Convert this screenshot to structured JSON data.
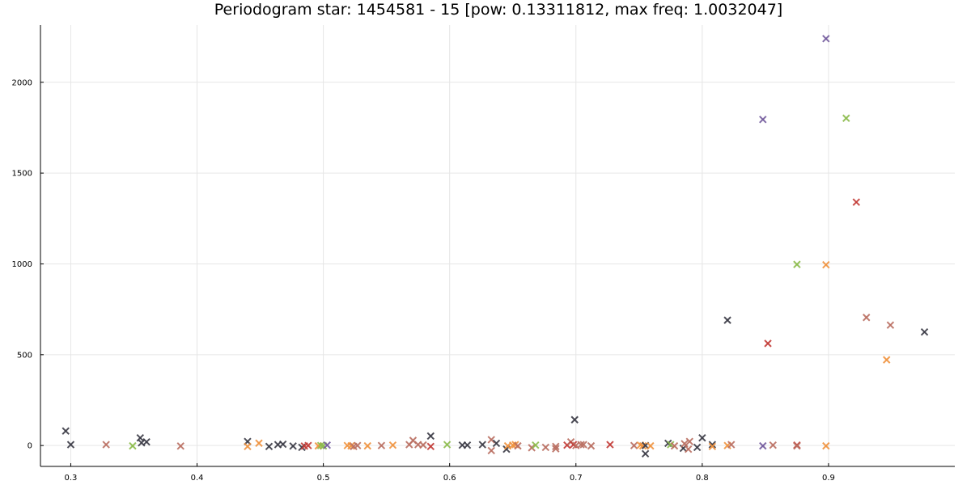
{
  "chart_data": {
    "type": "scatter",
    "title": "Periodogram star: 1454581 - 15 [pow: 0.13311812, max freq: 1.0032047]",
    "xlabel": "",
    "ylabel": "",
    "xlim": [
      0.276,
      1.0
    ],
    "ylim": [
      -115,
      2315
    ],
    "xticks": [
      0.3,
      0.4,
      0.5,
      0.6,
      0.7,
      0.8,
      0.9
    ],
    "xtick_labels": [
      "0.3",
      "0.4",
      "0.5",
      "0.6",
      "0.7",
      "0.8",
      "0.9"
    ],
    "yticks": [
      0,
      500,
      1000,
      1500,
      2000
    ],
    "ytick_labels": [
      "0",
      "500",
      "1000",
      "1500",
      "2000"
    ],
    "grid": true,
    "legend": "none",
    "marker": "x",
    "colors": {
      "dark": "#3a3a45",
      "orange": "#f0923e",
      "rose": "#b96e60",
      "green": "#8cbb4c",
      "red": "#c23a35",
      "purple": "#725a9c"
    },
    "points": [
      {
        "x": 0.296,
        "y": 80,
        "c": "dark"
      },
      {
        "x": 0.3,
        "y": 5,
        "c": "dark"
      },
      {
        "x": 0.328,
        "y": 5,
        "c": "rose"
      },
      {
        "x": 0.349,
        "y": -2,
        "c": "green"
      },
      {
        "x": 0.355,
        "y": 42,
        "c": "dark"
      },
      {
        "x": 0.356,
        "y": 15,
        "c": "dark"
      },
      {
        "x": 0.36,
        "y": 20,
        "c": "dark"
      },
      {
        "x": 0.387,
        "y": -3,
        "c": "rose"
      },
      {
        "x": 0.44,
        "y": 22,
        "c": "dark"
      },
      {
        "x": 0.44,
        "y": -5,
        "c": "orange"
      },
      {
        "x": 0.449,
        "y": 13,
        "c": "orange"
      },
      {
        "x": 0.457,
        "y": -5,
        "c": "dark"
      },
      {
        "x": 0.464,
        "y": 5,
        "c": "dark"
      },
      {
        "x": 0.468,
        "y": 7,
        "c": "dark"
      },
      {
        "x": 0.476,
        "y": -3,
        "c": "dark"
      },
      {
        "x": 0.483,
        "y": -10,
        "c": "dark"
      },
      {
        "x": 0.485,
        "y": -3,
        "c": "red"
      },
      {
        "x": 0.488,
        "y": 0,
        "c": "red"
      },
      {
        "x": 0.496,
        "y": -2,
        "c": "orange"
      },
      {
        "x": 0.498,
        "y": 0,
        "c": "green"
      },
      {
        "x": 0.5,
        "y": -2,
        "c": "green"
      },
      {
        "x": 0.503,
        "y": 2,
        "c": "purple"
      },
      {
        "x": 0.519,
        "y": 0,
        "c": "orange"
      },
      {
        "x": 0.522,
        "y": -2,
        "c": "orange"
      },
      {
        "x": 0.524,
        "y": -5,
        "c": "rose"
      },
      {
        "x": 0.527,
        "y": 0,
        "c": "rose"
      },
      {
        "x": 0.535,
        "y": -2,
        "c": "orange"
      },
      {
        "x": 0.546,
        "y": 0,
        "c": "rose"
      },
      {
        "x": 0.555,
        "y": 2,
        "c": "orange"
      },
      {
        "x": 0.568,
        "y": 5,
        "c": "rose"
      },
      {
        "x": 0.571,
        "y": 28,
        "c": "rose"
      },
      {
        "x": 0.575,
        "y": 5,
        "c": "rose"
      },
      {
        "x": 0.579,
        "y": 3,
        "c": "rose"
      },
      {
        "x": 0.585,
        "y": 52,
        "c": "dark"
      },
      {
        "x": 0.585,
        "y": -5,
        "c": "red"
      },
      {
        "x": 0.598,
        "y": 5,
        "c": "green"
      },
      {
        "x": 0.61,
        "y": 2,
        "c": "dark"
      },
      {
        "x": 0.614,
        "y": 2,
        "c": "dark"
      },
      {
        "x": 0.626,
        "y": 5,
        "c": "dark"
      },
      {
        "x": 0.633,
        "y": 32,
        "c": "rose"
      },
      {
        "x": 0.633,
        "y": -28,
        "c": "rose"
      },
      {
        "x": 0.637,
        "y": 12,
        "c": "dark"
      },
      {
        "x": 0.645,
        "y": -20,
        "c": "dark"
      },
      {
        "x": 0.646,
        "y": -2,
        "c": "orange"
      },
      {
        "x": 0.65,
        "y": 2,
        "c": "orange"
      },
      {
        "x": 0.652,
        "y": 5,
        "c": "orange"
      },
      {
        "x": 0.654,
        "y": -2,
        "c": "rose"
      },
      {
        "x": 0.665,
        "y": -12,
        "c": "rose"
      },
      {
        "x": 0.668,
        "y": 2,
        "c": "green"
      },
      {
        "x": 0.676,
        "y": -10,
        "c": "rose"
      },
      {
        "x": 0.684,
        "y": -5,
        "c": "rose"
      },
      {
        "x": 0.684,
        "y": -18,
        "c": "rose"
      },
      {
        "x": 0.693,
        "y": 2,
        "c": "red"
      },
      {
        "x": 0.696,
        "y": 20,
        "c": "rose"
      },
      {
        "x": 0.698,
        "y": 5,
        "c": "red"
      },
      {
        "x": 0.699,
        "y": 142,
        "c": "dark"
      },
      {
        "x": 0.7,
        "y": 0,
        "c": "rose"
      },
      {
        "x": 0.704,
        "y": 5,
        "c": "rose"
      },
      {
        "x": 0.706,
        "y": 5,
        "c": "rose"
      },
      {
        "x": 0.712,
        "y": -2,
        "c": "rose"
      },
      {
        "x": 0.727,
        "y": 5,
        "c": "red"
      },
      {
        "x": 0.746,
        "y": 0,
        "c": "rose"
      },
      {
        "x": 0.751,
        "y": 2,
        "c": "orange"
      },
      {
        "x": 0.753,
        "y": -2,
        "c": "orange"
      },
      {
        "x": 0.755,
        "y": 0,
        "c": "dark"
      },
      {
        "x": 0.755,
        "y": -45,
        "c": "dark"
      },
      {
        "x": 0.759,
        "y": -2,
        "c": "orange"
      },
      {
        "x": 0.773,
        "y": 12,
        "c": "dark"
      },
      {
        "x": 0.775,
        "y": 5,
        "c": "green"
      },
      {
        "x": 0.778,
        "y": -2,
        "c": "rose"
      },
      {
        "x": 0.785,
        "y": -15,
        "c": "dark"
      },
      {
        "x": 0.786,
        "y": 10,
        "c": "rose"
      },
      {
        "x": 0.789,
        "y": -20,
        "c": "rose"
      },
      {
        "x": 0.79,
        "y": 22,
        "c": "rose"
      },
      {
        "x": 0.796,
        "y": -10,
        "c": "dark"
      },
      {
        "x": 0.8,
        "y": 42,
        "c": "dark"
      },
      {
        "x": 0.808,
        "y": 5,
        "c": "dark"
      },
      {
        "x": 0.808,
        "y": -5,
        "c": "orange"
      },
      {
        "x": 0.82,
        "y": 690,
        "c": "dark"
      },
      {
        "x": 0.82,
        "y": 0,
        "c": "orange"
      },
      {
        "x": 0.823,
        "y": 5,
        "c": "rose"
      },
      {
        "x": 0.848,
        "y": 1795,
        "c": "purple"
      },
      {
        "x": 0.848,
        "y": -2,
        "c": "purple"
      },
      {
        "x": 0.852,
        "y": 562,
        "c": "red"
      },
      {
        "x": 0.856,
        "y": 2,
        "c": "rose"
      },
      {
        "x": 0.875,
        "y": 997,
        "c": "green"
      },
      {
        "x": 0.875,
        "y": 2,
        "c": "red"
      },
      {
        "x": 0.875,
        "y": -2,
        "c": "rose"
      },
      {
        "x": 0.898,
        "y": 2240,
        "c": "purple"
      },
      {
        "x": 0.898,
        "y": 995,
        "c": "orange"
      },
      {
        "x": 0.898,
        "y": -2,
        "c": "orange"
      },
      {
        "x": 0.914,
        "y": 1802,
        "c": "green"
      },
      {
        "x": 0.922,
        "y": 1340,
        "c": "red"
      },
      {
        "x": 0.93,
        "y": 705,
        "c": "rose"
      },
      {
        "x": 0.946,
        "y": 472,
        "c": "orange"
      },
      {
        "x": 0.949,
        "y": 663,
        "c": "rose"
      },
      {
        "x": 0.976,
        "y": 625,
        "c": "dark"
      }
    ]
  }
}
